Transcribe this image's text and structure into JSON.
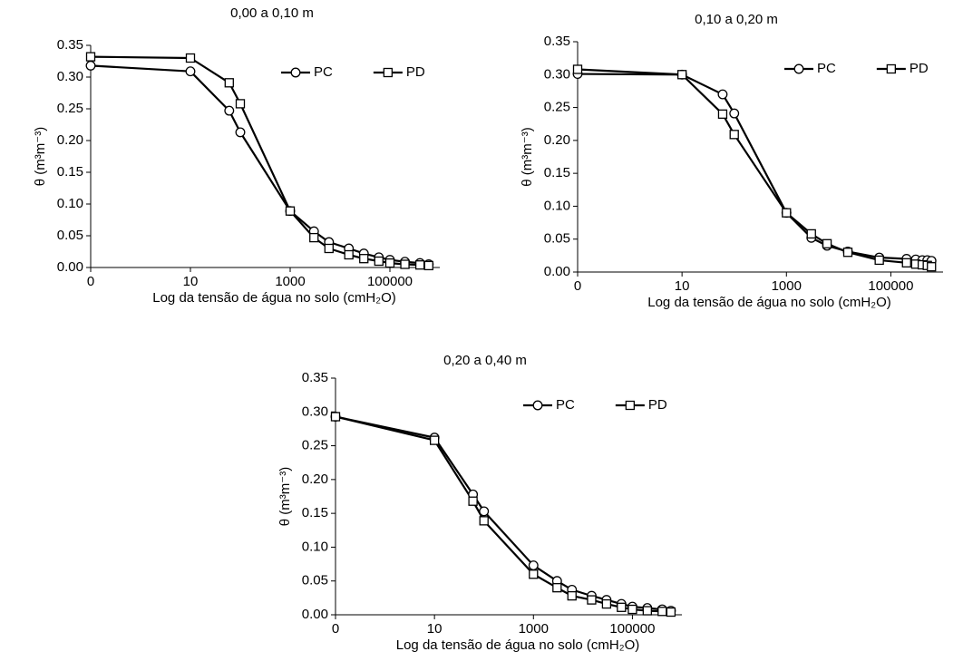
{
  "chart_data": [
    {
      "type": "line",
      "title": "0,00 a 0,10 m",
      "x_label": "Log da tensão de água no solo (cmH₂O)",
      "y_label": "θ (m³m⁻³)",
      "x": [
        0.1,
        10,
        60,
        100,
        1000,
        3000,
        6000,
        15000,
        30000,
        60000,
        100000,
        200000,
        400000,
        600000
      ],
      "series": [
        {
          "name": "PC",
          "color": "#000000",
          "marker": "circle",
          "values": [
            0.318,
            0.309,
            0.247,
            0.213,
            0.089,
            0.057,
            0.04,
            0.03,
            0.022,
            0.016,
            0.012,
            0.009,
            0.007,
            0.005
          ]
        },
        {
          "name": "PD",
          "color": "#000000",
          "marker": "square",
          "values": [
            0.332,
            0.33,
            0.291,
            0.258,
            0.089,
            0.047,
            0.03,
            0.02,
            0.014,
            0.01,
            0.007,
            0.005,
            0.004,
            0.003
          ]
        }
      ],
      "xscale": "log",
      "xlim": [
        0.1,
        1000000
      ],
      "xticks": [
        {
          "value": 0.1,
          "label": "0"
        },
        10,
        1000,
        100000
      ],
      "ylim": [
        0,
        0.35
      ],
      "yticks": [
        {
          "value": 0,
          "label": "0.00"
        },
        0.05,
        {
          "value": 0.1,
          "label": "0.10"
        },
        0.15,
        {
          "value": 0.2,
          "label": "0.20"
        },
        0.25,
        {
          "value": 0.3,
          "label": "0.30"
        },
        0.35
      ],
      "grid": false,
      "legend": "upper right"
    },
    {
      "type": "line",
      "title": "0,10 a 0,20 m",
      "x_label": "Log da tensão de água no solo (cmH₂O)",
      "y_label": "θ (m³m⁻³)",
      "x": [
        0.1,
        10,
        60,
        100,
        1000,
        3000,
        6000,
        15000,
        60000,
        200000,
        300000,
        400000,
        500000,
        600000
      ],
      "series": [
        {
          "name": "PC",
          "color": "#000000",
          "marker": "circle",
          "values": [
            0.301,
            0.3,
            0.27,
            0.241,
            0.09,
            0.052,
            0.04,
            0.031,
            0.022,
            0.02,
            0.019,
            0.018,
            0.018,
            0.017
          ]
        },
        {
          "name": "PD",
          "color": "#000000",
          "marker": "square",
          "values": [
            0.308,
            0.3,
            0.24,
            0.209,
            0.09,
            0.058,
            0.043,
            0.03,
            0.018,
            0.014,
            0.012,
            0.011,
            0.01,
            0.008
          ]
        }
      ],
      "xscale": "log",
      "xlim": [
        0.1,
        1000000
      ],
      "xticks": [
        {
          "value": 0.1,
          "label": "0"
        },
        10,
        1000,
        100000
      ],
      "ylim": [
        0,
        0.35
      ],
      "yticks": [
        {
          "value": 0,
          "label": "0.00"
        },
        0.05,
        {
          "value": 0.1,
          "label": "0.10"
        },
        0.15,
        {
          "value": 0.2,
          "label": "0.20"
        },
        0.25,
        {
          "value": 0.3,
          "label": "0.30"
        },
        0.35
      ],
      "grid": false,
      "legend": "upper right"
    },
    {
      "type": "line",
      "title": "0,20 a 0,40 m",
      "x_label": "Log da tensão de água no solo (cmH₂O)",
      "y_label": "θ (m³m⁻³)",
      "x": [
        0.1,
        10,
        60,
        100,
        1000,
        3000,
        6000,
        15000,
        30000,
        60000,
        100000,
        200000,
        400000,
        600000
      ],
      "series": [
        {
          "name": "PC",
          "color": "#000000",
          "marker": "circle",
          "values": [
            0.293,
            0.262,
            0.178,
            0.153,
            0.073,
            0.05,
            0.037,
            0.028,
            0.022,
            0.016,
            0.012,
            0.01,
            0.008,
            0.006
          ]
        },
        {
          "name": "PD",
          "color": "#000000",
          "marker": "square",
          "values": [
            0.293,
            0.258,
            0.168,
            0.139,
            0.06,
            0.04,
            0.028,
            0.022,
            0.016,
            0.011,
            0.008,
            0.006,
            0.005,
            0.004
          ]
        }
      ],
      "xscale": "log",
      "xlim": [
        0.1,
        1000000
      ],
      "xticks": [
        {
          "value": 0.1,
          "label": "0"
        },
        10,
        1000,
        100000
      ],
      "ylim": [
        0,
        0.35
      ],
      "yticks": [
        {
          "value": 0,
          "label": "0.00"
        },
        0.05,
        {
          "value": 0.1,
          "label": "0.10"
        },
        0.15,
        {
          "value": 0.2,
          "label": "0.20"
        },
        0.25,
        {
          "value": 0.3,
          "label": "0.30"
        },
        0.35
      ],
      "grid": false,
      "legend": "upper right"
    }
  ]
}
